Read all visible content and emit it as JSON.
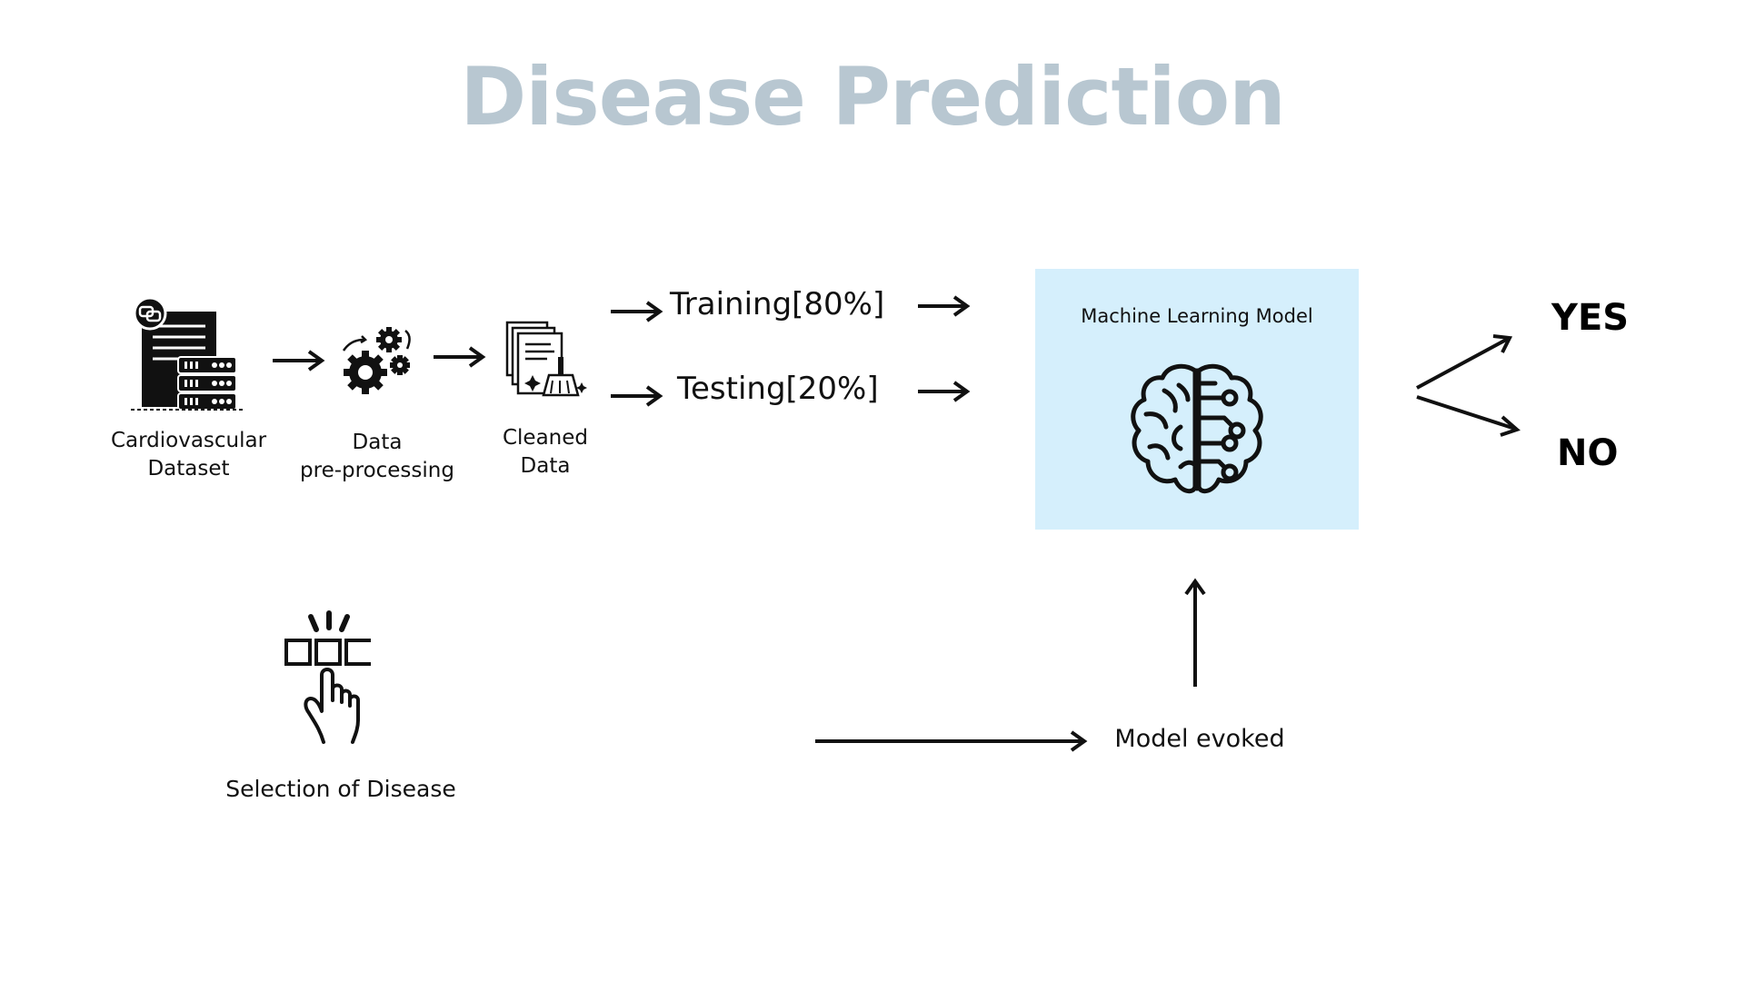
{
  "title": "Disease Prediction",
  "steps": {
    "dataset": {
      "line1": "Cardiovascular",
      "line2": "Dataset",
      "icon": "database-server-icon"
    },
    "preprocessing": {
      "line1": "Data",
      "line2": "pre-processing",
      "icon": "gears-icon"
    },
    "cleaned": {
      "line1": "Cleaned",
      "line2": "Data",
      "icon": "cleaned-documents-icon"
    }
  },
  "split": {
    "training": "Training[80%]",
    "testing": "Testing[20%]"
  },
  "model": {
    "label": "Machine Learning Model",
    "icon": "brain-circuit-icon",
    "box_color": "#d5effc"
  },
  "outputs": {
    "yes": "YES",
    "no": "NO"
  },
  "selection": {
    "label": "Selection of Disease",
    "icon": "hand-select-icon"
  },
  "evoked": {
    "label": "Model evoked"
  },
  "colors": {
    "title": "#b8c7d1",
    "ink": "#111111"
  }
}
